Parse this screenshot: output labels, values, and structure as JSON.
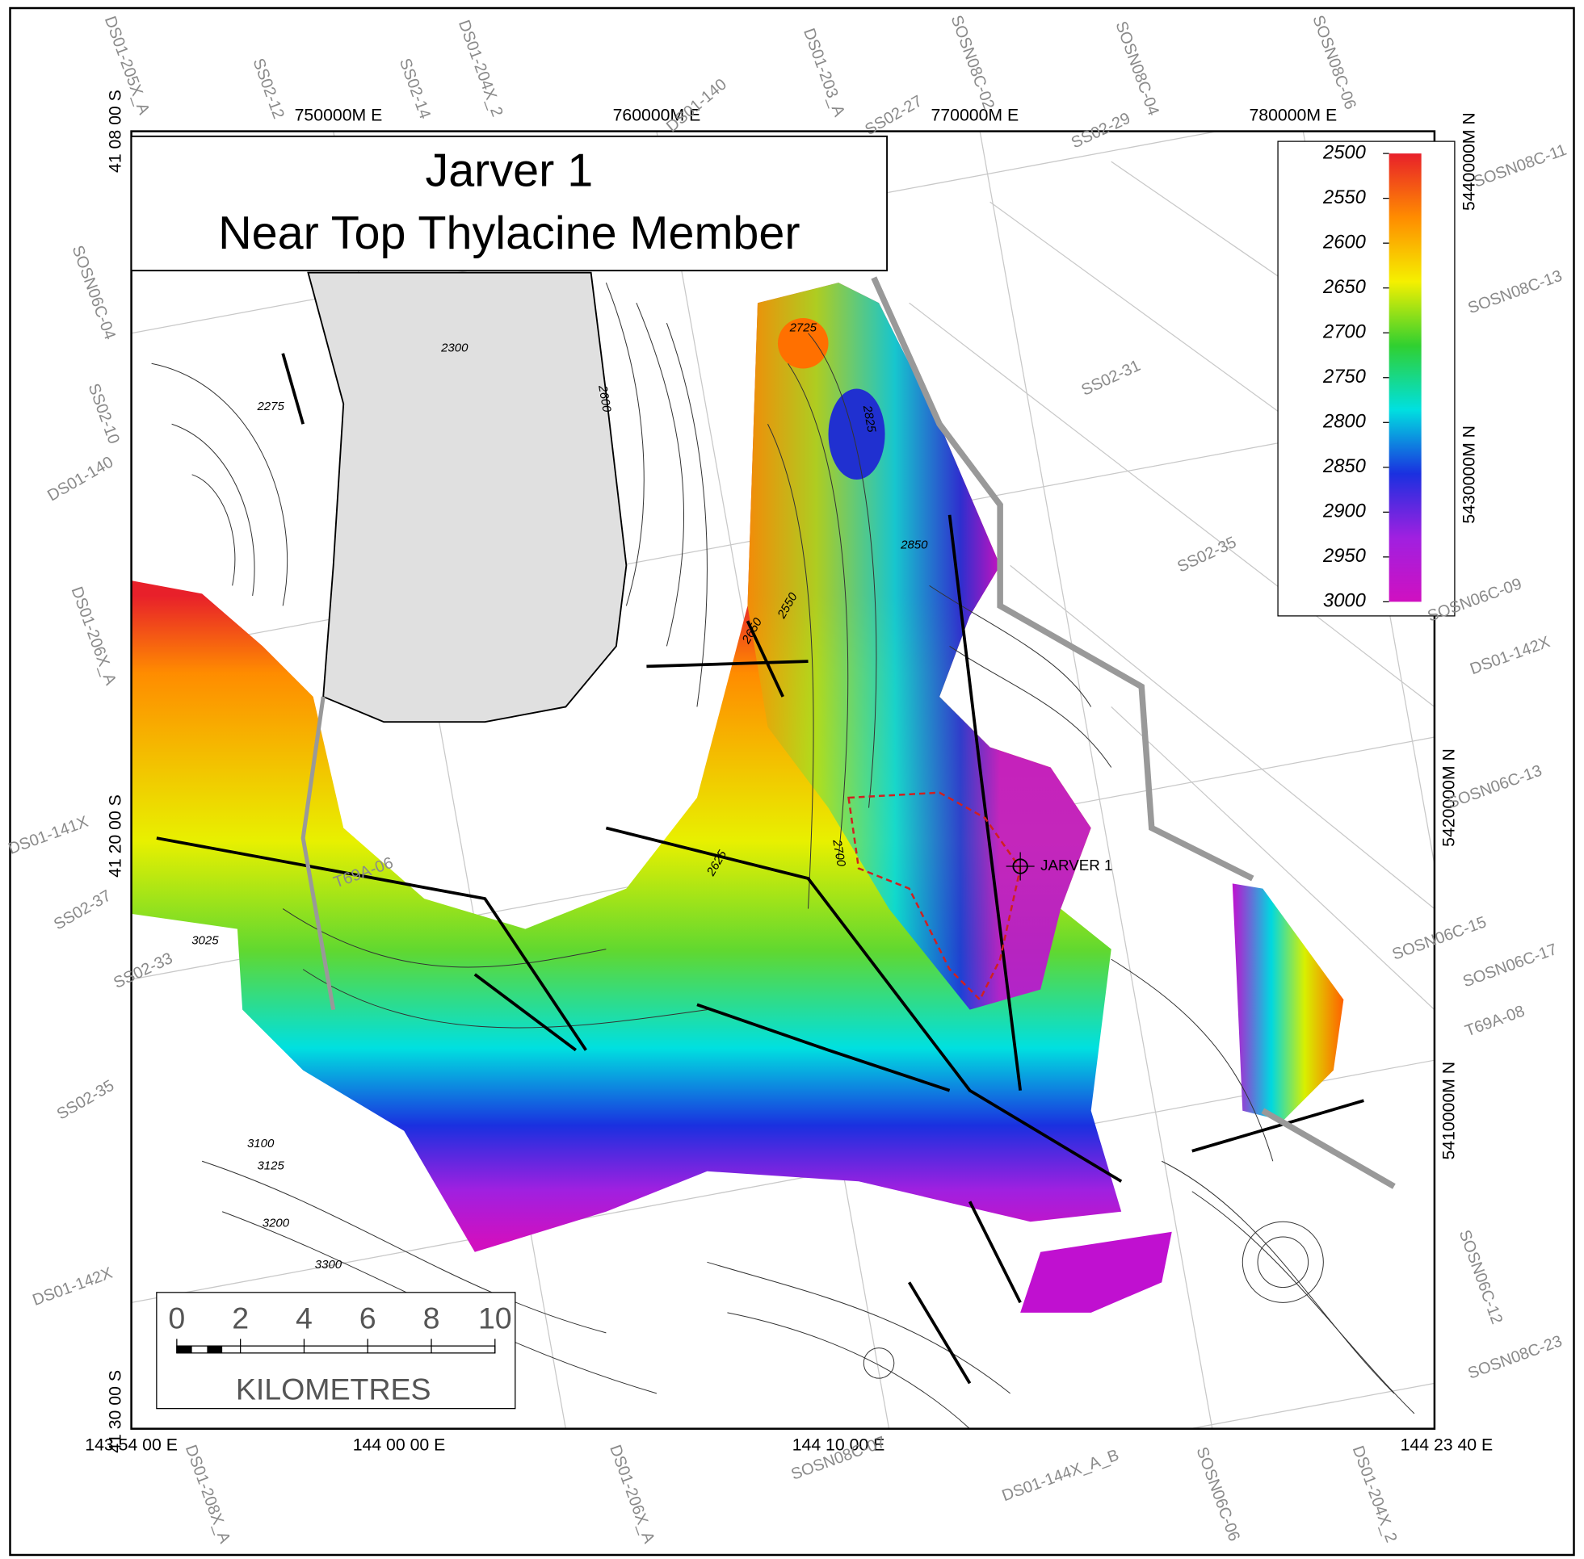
{
  "title_lines": [
    "Jarver 1",
    "Near Top Thylacine Member"
  ],
  "legend": {
    "ticks": [
      2500,
      2550,
      2600,
      2650,
      2700,
      2750,
      2800,
      2850,
      2900,
      2950,
      3000
    ],
    "colors": [
      "#e8202a",
      "#ff8c00",
      "#f5f000",
      "#30d030",
      "#00e0e0",
      "#1a30e0",
      "#a020e0",
      "#d010c0"
    ]
  },
  "scale_bar": {
    "ticks": [
      0,
      2,
      4,
      6,
      8,
      10
    ],
    "unit": "KILOMETRES"
  },
  "grid_labels": {
    "top": [
      "750000M E",
      "760000M E",
      "770000M E",
      "780000M E"
    ],
    "right": [
      "5440000M N",
      "5430000M N",
      "5420000M N",
      "5410000M N"
    ],
    "bottom": [
      "143 54 00 E",
      "144 00 00 E",
      "144 10 00 E",
      "144 23 40 E"
    ],
    "left": [
      "41 08 00 S",
      "41 20 00 S",
      "41 30 00 S"
    ]
  },
  "well": {
    "name": "JARVER 1"
  },
  "seismic_lines": [
    "DS01-205X_A",
    "SS02-12",
    "SS02-14",
    "DS01-204X_2",
    "DS01-140",
    "DS01-203_A",
    "SS02-27",
    "SOSN08C-02",
    "SOSN08C-04",
    "SOSN08C-06",
    "SS02-29",
    "SOSN08C-11",
    "SOSN08C-13",
    "SOSN06C-04",
    "SS02-10",
    "DS01-140",
    "DS01-206X_A",
    "DS01-141X",
    "SS02-37",
    "SS02-33",
    "SS02-35",
    "DS01-142X",
    "SS02-31",
    "SS02-35",
    "SOSN06C-09",
    "DS01-142X",
    "SOSN06C-15",
    "SOSN06C-17",
    "T69A-08",
    "T69A-06",
    "DS01-208X_A",
    "DS01-206X_A",
    "SOSN08C-07",
    "DS01-144X_A_B",
    "SOSN06C-06",
    "DS01-204X_2",
    "SOSN06C-12",
    "SOSN08C-23",
    "SOSN06C-13"
  ],
  "contour_labels": [
    "2725",
    "2825",
    "2650",
    "2600",
    "2550",
    "2300",
    "2275",
    "3025",
    "3100",
    "3125",
    "3200",
    "3300",
    "2625",
    "2700",
    "2850"
  ]
}
